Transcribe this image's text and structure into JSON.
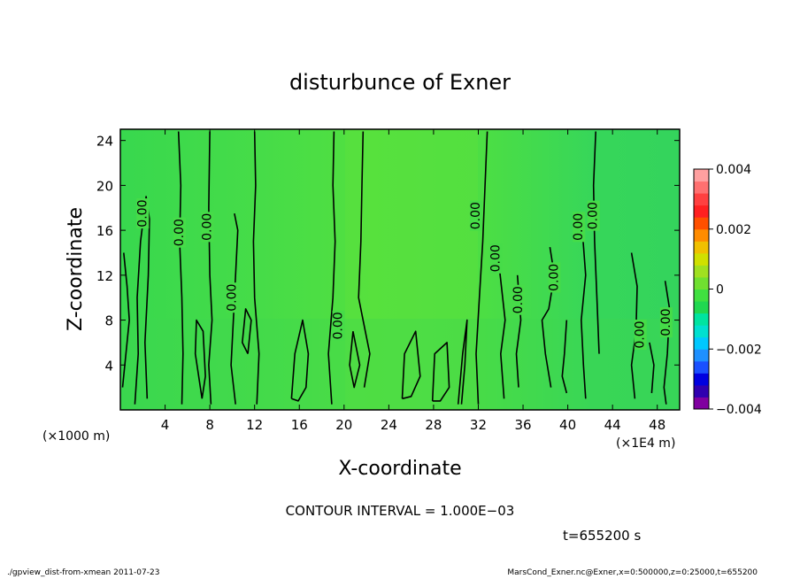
{
  "chart_data": {
    "type": "heatmap",
    "title": "disturbunce of Exner",
    "xlabel": "X-coordinate",
    "ylabel": "Z-coordinate",
    "x_unit_left": "(×1000 m)",
    "x_unit_right": "(×1E4 m)",
    "xlim": [
      0,
      50
    ],
    "ylim": [
      0,
      25
    ],
    "x_ticks": [
      4,
      8,
      12,
      16,
      20,
      24,
      28,
      32,
      36,
      40,
      44,
      48
    ],
    "y_ticks": [
      4,
      8,
      12,
      16,
      20,
      24
    ],
    "colorbar": {
      "min": -0.004,
      "max": 0.004,
      "tick_values": [
        0.004,
        0.002,
        0,
        -0.002,
        -0.004
      ],
      "tick_labels": [
        "0.004",
        "0.002",
        "0",
        "−0.002",
        "−0.004"
      ],
      "colors": [
        "#8000a0",
        "#3000b0",
        "#0000e0",
        "#1a50ff",
        "#1e90ff",
        "#00c8ff",
        "#00e0d0",
        "#00e4a0",
        "#20d850",
        "#40e040",
        "#70e030",
        "#a0e020",
        "#d0e000",
        "#f0c000",
        "#ff8c00",
        "#ff5000",
        "#ff2020",
        "#ff4040",
        "#ff7070",
        "#ffa0a0"
      ]
    },
    "contour_label": "0.00",
    "contour_interval": "CONTOUR INTERVAL = 1.000E−03",
    "time_label": "t=655200 s",
    "contour_labels": [
      {
        "x": 2.0,
        "z": 17.5
      },
      {
        "x": 5.3,
        "z": 15.8
      },
      {
        "x": 7.8,
        "z": 16.3
      },
      {
        "x": 10.0,
        "z": 10.0
      },
      {
        "x": 19.5,
        "z": 7.5
      },
      {
        "x": 31.8,
        "z": 17.3
      },
      {
        "x": 33.6,
        "z": 13.5
      },
      {
        "x": 35.6,
        "z": 9.8
      },
      {
        "x": 38.8,
        "z": 11.8
      },
      {
        "x": 41.0,
        "z": 16.3
      },
      {
        "x": 42.3,
        "z": 17.3
      },
      {
        "x": 46.5,
        "z": 6.7
      },
      {
        "x": 48.8,
        "z": 7.8
      }
    ],
    "contours": [
      [
        [
          0.2,
          2
        ],
        [
          0.5,
          5
        ],
        [
          0.8,
          8
        ],
        [
          0.6,
          11
        ],
        [
          0.3,
          14
        ]
      ],
      [
        [
          1.3,
          0.5
        ],
        [
          1.6,
          5
        ],
        [
          1.5,
          10
        ],
        [
          1.8,
          15
        ],
        [
          2.3,
          19
        ],
        [
          2.6,
          17
        ],
        [
          2.5,
          12
        ],
        [
          2.2,
          6
        ],
        [
          2.4,
          1
        ]
      ],
      [
        [
          5.2,
          24.8
        ],
        [
          5.4,
          20
        ],
        [
          5.3,
          15
        ],
        [
          5.5,
          10
        ],
        [
          5.6,
          5
        ],
        [
          5.5,
          0.5
        ]
      ],
      [
        [
          7.3,
          1
        ],
        [
          6.7,
          5
        ],
        [
          6.8,
          8
        ],
        [
          7.4,
          7
        ],
        [
          7.6,
          3
        ],
        [
          7.3,
          1
        ]
      ],
      [
        [
          8.0,
          24.8
        ],
        [
          7.9,
          18
        ],
        [
          8.0,
          12
        ],
        [
          8.2,
          8
        ],
        [
          7.9,
          4
        ],
        [
          8.1,
          0.5
        ]
      ],
      [
        [
          10.2,
          17.5
        ],
        [
          10.5,
          16
        ],
        [
          10.3,
          12
        ],
        [
          10.1,
          8
        ],
        [
          9.9,
          4
        ],
        [
          10.3,
          0.5
        ]
      ],
      [
        [
          12.0,
          24.8
        ],
        [
          12.1,
          20
        ],
        [
          11.9,
          15
        ],
        [
          12.0,
          10
        ],
        [
          12.4,
          5
        ],
        [
          12.2,
          0.5
        ]
      ],
      [
        [
          11.4,
          5
        ],
        [
          11.7,
          8
        ],
        [
          11.2,
          9
        ],
        [
          10.9,
          6
        ],
        [
          11.4,
          5
        ]
      ],
      [
        [
          15.3,
          1
        ],
        [
          15.6,
          5
        ],
        [
          16.3,
          8
        ],
        [
          16.8,
          5
        ],
        [
          16.6,
          2
        ],
        [
          15.9,
          0.8
        ],
        [
          15.3,
          1
        ]
      ],
      [
        [
          19.1,
          24.8
        ],
        [
          19.0,
          20
        ],
        [
          19.2,
          15
        ],
        [
          19.0,
          10
        ],
        [
          18.6,
          5
        ],
        [
          18.9,
          0.5
        ]
      ],
      [
        [
          21.7,
          24.8
        ],
        [
          21.6,
          20
        ],
        [
          21.5,
          15
        ],
        [
          21.3,
          10
        ],
        [
          21.9,
          7
        ],
        [
          22.3,
          5
        ],
        [
          21.8,
          2
        ]
      ],
      [
        [
          20.8,
          7
        ],
        [
          21.4,
          4
        ],
        [
          20.9,
          2
        ],
        [
          20.5,
          4
        ],
        [
          20.8,
          7
        ]
      ],
      [
        [
          25.2,
          1
        ],
        [
          25.4,
          5
        ],
        [
          26.4,
          7
        ],
        [
          26.8,
          3
        ],
        [
          26.0,
          1.2
        ],
        [
          25.2,
          1
        ]
      ],
      [
        [
          27.9,
          0.8
        ],
        [
          28.1,
          5
        ],
        [
          29.2,
          6
        ],
        [
          29.4,
          2
        ],
        [
          28.6,
          0.8
        ],
        [
          27.9,
          0.8
        ]
      ],
      [
        [
          30.2,
          0.5
        ],
        [
          30.6,
          5
        ],
        [
          31.0,
          8
        ],
        [
          30.8,
          4
        ],
        [
          30.5,
          0.5
        ]
      ],
      [
        [
          32.8,
          24.8
        ],
        [
          32.6,
          20
        ],
        [
          32.4,
          15
        ],
        [
          32.1,
          10
        ],
        [
          31.8,
          5
        ],
        [
          32.0,
          0.5
        ]
      ],
      [
        [
          33.9,
          12.5
        ],
        [
          34.4,
          8
        ],
        [
          34.0,
          5
        ],
        [
          34.3,
          1
        ]
      ],
      [
        [
          35.5,
          12
        ],
        [
          35.8,
          8
        ],
        [
          35.4,
          5
        ],
        [
          35.6,
          2
        ]
      ],
      [
        [
          38.4,
          14.5
        ],
        [
          38.8,
          12
        ],
        [
          38.3,
          9
        ],
        [
          37.7,
          8
        ],
        [
          38.0,
          5
        ],
        [
          38.5,
          2
        ]
      ],
      [
        [
          39.9,
          8
        ],
        [
          39.7,
          5
        ],
        [
          39.5,
          3
        ],
        [
          39.9,
          1.5
        ]
      ],
      [
        [
          41.3,
          16
        ],
        [
          41.6,
          12
        ],
        [
          41.2,
          8
        ],
        [
          41.4,
          4
        ],
        [
          41.6,
          1
        ]
      ],
      [
        [
          42.5,
          24.8
        ],
        [
          42.3,
          20
        ],
        [
          42.4,
          15
        ],
        [
          42.6,
          10
        ],
        [
          42.8,
          5
        ]
      ],
      [
        [
          45.7,
          14
        ],
        [
          46.2,
          11
        ],
        [
          46.1,
          7
        ],
        [
          45.7,
          4
        ],
        [
          46.0,
          1
        ]
      ],
      [
        [
          47.3,
          6
        ],
        [
          47.7,
          4
        ],
        [
          47.5,
          1.5
        ]
      ],
      [
        [
          48.7,
          11.5
        ],
        [
          49.1,
          9
        ],
        [
          48.9,
          5
        ],
        [
          48.6,
          2
        ],
        [
          48.8,
          0.5
        ]
      ]
    ]
  },
  "footer": {
    "left_text": "./gpview_dist-from-xmean  2011-07-23",
    "right_text": "MarsCond_Exner.nc@Exner,x=0:500000,z=0:25000,t=655200"
  }
}
